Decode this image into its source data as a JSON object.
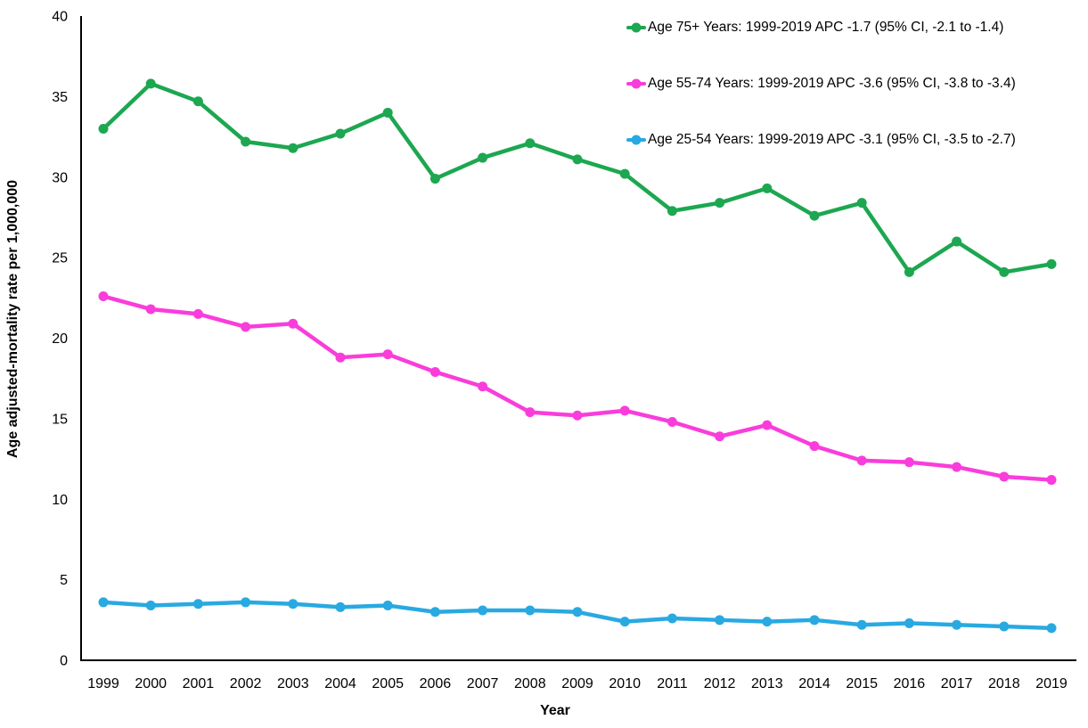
{
  "chart_data": {
    "type": "line",
    "title": "",
    "xlabel": "Year",
    "ylabel": "Age adjusted-mortality rate per 1,000,000",
    "x": [
      1999,
      2000,
      2001,
      2002,
      2003,
      2004,
      2005,
      2006,
      2007,
      2008,
      2009,
      2010,
      2011,
      2012,
      2013,
      2014,
      2015,
      2016,
      2017,
      2018,
      2019
    ],
    "ylim": [
      0,
      40
    ],
    "yticks": [
      0,
      5,
      10,
      15,
      20,
      25,
      30,
      35,
      40
    ],
    "grid": false,
    "legend_position": "top-right",
    "axis_color": "#000000",
    "series": [
      {
        "name": "age-75plus",
        "label": "Age 75+ Years: 1999-2019 APC -1.7 (95% CI, -2.1 to -1.4)",
        "color": "#1CA750",
        "marker": "circle",
        "values": [
          33.0,
          35.8,
          34.7,
          32.2,
          31.8,
          32.7,
          34.0,
          29.9,
          31.2,
          32.1,
          31.1,
          30.2,
          27.9,
          28.4,
          29.3,
          27.6,
          28.4,
          24.1,
          26.0,
          24.1,
          24.6
        ]
      },
      {
        "name": "age-55-74",
        "label": "Age 55-74 Years: 1999-2019 APC -3.6 (95% CI, -3.8 to -3.4)",
        "color": "#F93DDB",
        "marker": "circle",
        "values": [
          22.6,
          21.8,
          21.5,
          20.7,
          20.9,
          18.8,
          19.0,
          17.9,
          17.0,
          15.4,
          15.2,
          15.5,
          14.8,
          13.9,
          14.6,
          13.3,
          12.4,
          12.3,
          12.0,
          11.4,
          11.2
        ]
      },
      {
        "name": "age-25-54",
        "label": "Age 25-54 Years: 1999-2019 APC -3.1 (95% CI, -3.5 to -2.7)",
        "color": "#29A9E1",
        "marker": "circle",
        "values": [
          3.6,
          3.4,
          3.5,
          3.6,
          3.5,
          3.3,
          3.4,
          3.0,
          3.1,
          3.1,
          3.0,
          2.4,
          2.6,
          2.5,
          2.4,
          2.5,
          2.2,
          2.3,
          2.2,
          2.1,
          2.0
        ]
      }
    ]
  }
}
